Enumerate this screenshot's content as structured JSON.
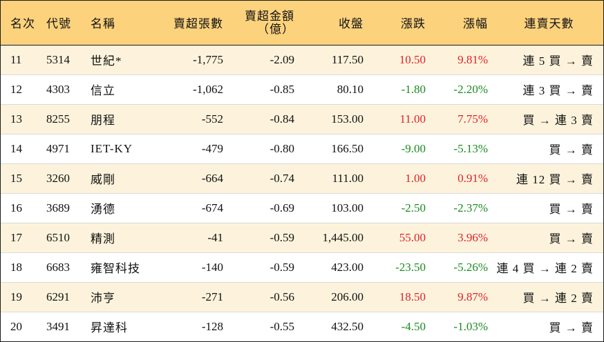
{
  "headers": {
    "rank": "名次",
    "code": "代號",
    "name": "名稱",
    "sell_shares": "賣超張數",
    "sell_amount_line1": "賣超金額",
    "sell_amount_line2": "（億）",
    "close": "收盤",
    "change": "漲跌",
    "change_pct": "漲幅",
    "streak": "連賣天數"
  },
  "colors": {
    "header_bg": "#fcd27d",
    "odd_row_bg": "#fdf3dc",
    "up": "#e0202a",
    "down": "#1b8a22"
  },
  "rows": [
    {
      "rank": "11",
      "code": "5314",
      "name": "世紀*",
      "sell_shares": "-1,775",
      "sell_amount": "-2.09",
      "close": "117.50",
      "change": "10.50",
      "change_pct": "9.81%",
      "direction": "up",
      "streak": "連 5 買 → 賣"
    },
    {
      "rank": "12",
      "code": "4303",
      "name": "信立",
      "sell_shares": "-1,062",
      "sell_amount": "-0.85",
      "close": "80.10",
      "change": "-1.80",
      "change_pct": "-2.20%",
      "direction": "down",
      "streak": "連 3 買 → 賣"
    },
    {
      "rank": "13",
      "code": "8255",
      "name": "朋程",
      "sell_shares": "-552",
      "sell_amount": "-0.84",
      "close": "153.00",
      "change": "11.00",
      "change_pct": "7.75%",
      "direction": "up",
      "streak": "買 → 連 3 賣"
    },
    {
      "rank": "14",
      "code": "4971",
      "name": "IET-KY",
      "sell_shares": "-479",
      "sell_amount": "-0.80",
      "close": "166.50",
      "change": "-9.00",
      "change_pct": "-5.13%",
      "direction": "down",
      "streak": "買 → 賣"
    },
    {
      "rank": "15",
      "code": "3260",
      "name": "威剛",
      "sell_shares": "-664",
      "sell_amount": "-0.74",
      "close": "111.00",
      "change": "1.00",
      "change_pct": "0.91%",
      "direction": "up",
      "streak": "連 12 買 → 賣"
    },
    {
      "rank": "16",
      "code": "3689",
      "name": "湧德",
      "sell_shares": "-674",
      "sell_amount": "-0.69",
      "close": "103.00",
      "change": "-2.50",
      "change_pct": "-2.37%",
      "direction": "down",
      "streak": "買 → 賣"
    },
    {
      "rank": "17",
      "code": "6510",
      "name": "精測",
      "sell_shares": "-41",
      "sell_amount": "-0.59",
      "close": "1,445.00",
      "change": "55.00",
      "change_pct": "3.96%",
      "direction": "up",
      "streak": "買 → 賣"
    },
    {
      "rank": "18",
      "code": "6683",
      "name": "雍智科技",
      "sell_shares": "-140",
      "sell_amount": "-0.59",
      "close": "423.00",
      "change": "-23.50",
      "change_pct": "-5.26%",
      "direction": "down",
      "streak": "連 4 買 → 連 2 賣"
    },
    {
      "rank": "19",
      "code": "6291",
      "name": "沛亨",
      "sell_shares": "-271",
      "sell_amount": "-0.56",
      "close": "206.00",
      "change": "18.50",
      "change_pct": "9.87%",
      "direction": "up",
      "streak": "買 → 連 2 賣"
    },
    {
      "rank": "20",
      "code": "3491",
      "name": "昇達科",
      "sell_shares": "-128",
      "sell_amount": "-0.55",
      "close": "432.50",
      "change": "-4.50",
      "change_pct": "-1.03%",
      "direction": "down",
      "streak": "買 → 賣"
    }
  ]
}
